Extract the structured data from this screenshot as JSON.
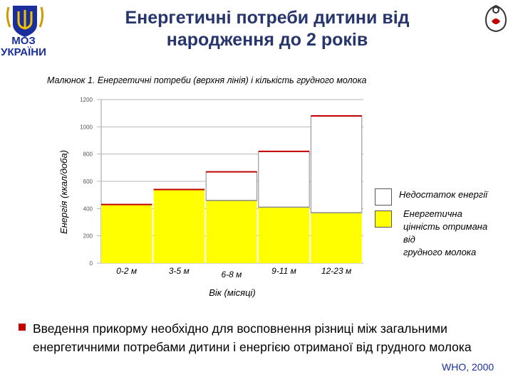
{
  "header": {
    "logo_text_line1": "МОЗ",
    "logo_text_line2": "УКРАЇНИ",
    "title": "Енергетичні потреби дитини від народження до 2 років"
  },
  "colors": {
    "accent_blue": "#1a2f9c",
    "title_color": "#27356d",
    "bar_fill": "#ffff00",
    "bullet": "#c00000"
  },
  "icons": {
    "logo": "trident-coat-of-arms-icon",
    "corner": "mother-child-icon",
    "bullet": "square-bullet-icon"
  },
  "chart_data": {
    "type": "bar",
    "title": "Малюнок 1. Енергетичні потреби (верхня лінія) і кількість грудного молока",
    "xlabel": "Вік (місяці)",
    "ylabel": "Енергія (ккал/доба)",
    "categories": [
      "0-2 м",
      "3-5 м",
      "6-8 м",
      "9-11 м",
      "12-23 м"
    ],
    "ylim": [
      0,
      1200
    ],
    "yticks": [
      0,
      200,
      400,
      600,
      800,
      1000,
      1200
    ],
    "grid": true,
    "legend_position": "right",
    "series": [
      {
        "name": "Енергетична цінність отримана від грудного молока",
        "color": "#ffff00",
        "values": [
          430,
          540,
          460,
          410,
          370
        ]
      },
      {
        "name": "Недостаток енергії",
        "color": "#ffffff",
        "values": [
          0,
          0,
          210,
          410,
          710
        ]
      }
    ],
    "totals": [
      430,
      540,
      670,
      820,
      1080
    ]
  },
  "legend": {
    "deficit_label": "Недостаток енергії",
    "breastmilk_label": [
      "Енергетична",
      "цінність отримана",
      "від",
      "грудного  молока"
    ]
  },
  "body": {
    "bullet_text": "Введення прикорму необхідно для восповнення різниці між загальними енергетичними потребами дитини і енергією отриманої від грудного молока",
    "source": "WHO, 2000"
  }
}
